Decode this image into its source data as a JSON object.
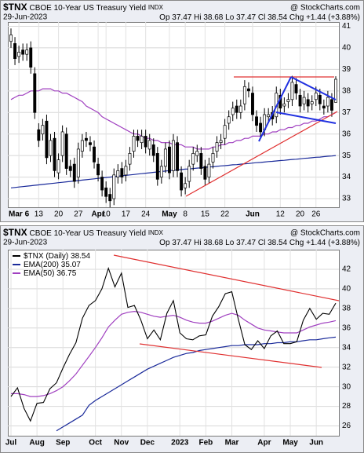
{
  "chart_data": [
    {
      "type": "candlestick",
      "symbol": "$TNX",
      "title": "CBOE 10-Year US Treasury Yield",
      "exchange": "INDX",
      "source": "@ StockCharts.com",
      "date": "29-Jun-2023",
      "quote": [
        {
          "label": "Op",
          "value": 37.47
        },
        {
          "label": "Hi",
          "value": 38.68
        },
        {
          "label": "Lo",
          "value": 37.47
        },
        {
          "label": "Cl",
          "value": 38.54
        },
        {
          "label": "Chg",
          "value": "+1.44 (+3.88%)"
        }
      ],
      "categories": [
        null,
        null,
        "Mar 6",
        null,
        null,
        null,
        null,
        "13",
        null,
        null,
        null,
        null,
        "20",
        null,
        null,
        null,
        null,
        "27",
        null,
        null,
        null,
        null,
        "Apr",
        null,
        "10",
        null,
        null,
        null,
        null,
        "17",
        null,
        null,
        null,
        null,
        "24",
        null,
        null,
        null,
        null,
        null,
        "May",
        null,
        null,
        null,
        "8",
        null,
        null,
        null,
        null,
        "15",
        null,
        null,
        null,
        null,
        "22",
        null,
        null,
        null,
        null,
        null,
        null,
        "Jun",
        null,
        null,
        null,
        null,
        null,
        null,
        "12",
        null,
        null,
        null,
        null,
        "20",
        null,
        null,
        null,
        "26",
        null,
        null,
        null,
        null,
        null
      ],
      "open": [
        40.3,
        40.2,
        39.6,
        39.9,
        39.7,
        40.0,
        38.8,
        36.2,
        36.0,
        36.6,
        35.0,
        35.8,
        34.2,
        35.0,
        36.0,
        34.5,
        34.6,
        34.0,
        35.2,
        35.8,
        35.6,
        35.4,
        34.6,
        34.0,
        33.5,
        33.2,
        33.0,
        34.0,
        34.4,
        34.1,
        34.6,
        35.2,
        35.9,
        35.6,
        35.9,
        35.3,
        35.5,
        35.1,
        34.0,
        34.5,
        35.4,
        34.3,
        35.6,
        34.2,
        33.5,
        33.8,
        34.6,
        35.0,
        35.1,
        34.5,
        34.0,
        34.7,
        35.2,
        35.6,
        35.8,
        36.5,
        36.9,
        37.3,
        37.0,
        37.4,
        38.1,
        37.9,
        36.8,
        36.5,
        36.2,
        36.8,
        37.0,
        36.8,
        37.8,
        37.3,
        37.5,
        37.6,
        38.3,
        37.8,
        37.4,
        37.6,
        37.4,
        37.6,
        37.8,
        37.3,
        37.3,
        37.6,
        37.47
      ],
      "high": [
        40.9,
        40.5,
        40.1,
        40.2,
        40.2,
        40.3,
        39.1,
        36.5,
        36.7,
        36.9,
        36.0,
        36.1,
        35.1,
        36.4,
        36.3,
        34.8,
        34.9,
        35.6,
        36.0,
        36.1,
        35.9,
        35.7,
        34.9,
        34.3,
        33.8,
        33.5,
        34.4,
        34.6,
        34.7,
        34.8,
        35.4,
        36.2,
        36.2,
        36.2,
        36.2,
        36.0,
        35.8,
        35.4,
        34.8,
        35.6,
        35.7,
        36.0,
        35.9,
        34.5,
        34.0,
        34.8,
        35.4,
        35.5,
        35.4,
        34.8,
        34.9,
        35.4,
        35.9,
        36.0,
        36.7,
        37.1,
        37.5,
        37.6,
        37.6,
        38.5,
        38.4,
        38.2,
        37.1,
        36.8,
        37.2,
        37.2,
        37.3,
        38.2,
        38.1,
        37.7,
        37.9,
        38.7,
        38.6,
        38.1,
        38.0,
        37.9,
        37.8,
        38.2,
        38.1,
        37.6,
        38.0,
        37.9,
        38.68
      ],
      "low": [
        40.0,
        39.2,
        39.3,
        39.4,
        39.4,
        38.8,
        36.7,
        35.4,
        35.7,
        34.6,
        34.7,
        34.0,
        33.9,
        34.7,
        34.1,
        34.0,
        33.5,
        33.7,
        34.9,
        35.4,
        35.2,
        34.4,
        33.8,
        33.1,
        32.8,
        32.6,
        32.7,
        33.7,
        33.7,
        33.8,
        34.3,
        34.9,
        35.4,
        35.3,
        35.1,
        35.0,
        34.7,
        33.6,
        33.7,
        34.2,
        33.9,
        34.0,
        34.0,
        33.1,
        33.2,
        33.5,
        34.3,
        34.7,
        34.1,
        33.6,
        33.7,
        34.4,
        34.9,
        35.3,
        35.5,
        36.2,
        36.6,
        36.7,
        36.7,
        37.1,
        37.7,
        36.6,
        36.1,
        35.8,
        35.9,
        36.5,
        36.4,
        36.5,
        36.9,
        37.0,
        37.2,
        37.3,
        37.6,
        37.0,
        37.1,
        37.0,
        37.1,
        37.3,
        37.1,
        36.9,
        37.0,
        36.8,
        37.47
      ],
      "close": [
        40.6,
        39.5,
        39.8,
        39.7,
        39.9,
        39.1,
        37.0,
        35.7,
        36.4,
        34.9,
        35.7,
        34.3,
        34.8,
        36.1,
        34.4,
        34.3,
        33.8,
        35.3,
        35.7,
        35.7,
        35.5,
        34.7,
        34.1,
        33.4,
        33.1,
        32.9,
        34.1,
        34.3,
        34.0,
        34.5,
        35.1,
        35.9,
        35.7,
        35.9,
        35.4,
        35.7,
        35.0,
        33.9,
        34.5,
        35.3,
        34.2,
        35.7,
        34.3,
        33.4,
        33.7,
        34.5,
        35.1,
        35.2,
        34.4,
        33.9,
        34.6,
        35.1,
        35.6,
        35.7,
        36.4,
        36.8,
        37.2,
        37.0,
        37.3,
        38.2,
        38.0,
        36.9,
        36.4,
        36.1,
        36.9,
        36.9,
        36.7,
        37.9,
        37.2,
        37.4,
        37.6,
        38.4,
        37.9,
        37.3,
        37.7,
        37.3,
        37.5,
        37.9,
        37.4,
        37.2,
        37.7,
        37.1,
        38.54
      ],
      "overlays": [
        {
          "color": "#a040c0",
          "values": [
            37.6,
            37.7,
            37.8,
            37.8,
            37.9,
            38.0,
            38.0,
            38.0,
            38.1,
            38.1,
            38.1,
            38.0,
            38.0,
            37.9,
            37.9,
            37.8,
            37.7,
            37.6,
            37.5,
            37.3,
            37.2,
            37.1,
            37.0,
            36.8,
            36.7,
            36.6,
            36.5,
            36.4,
            36.3,
            36.2,
            36.1,
            36.0,
            36.0,
            35.9,
            35.8,
            35.8,
            35.7,
            35.7,
            35.6,
            35.6,
            35.6,
            35.5,
            35.5,
            35.5,
            35.4,
            35.4,
            35.4,
            35.3,
            35.3,
            35.3,
            35.3,
            35.4,
            35.4,
            35.5,
            35.5,
            35.6,
            35.6,
            35.7,
            35.7,
            35.8,
            35.8,
            35.9,
            35.9,
            35.9,
            36.0,
            36.0,
            36.1,
            36.1,
            36.2,
            36.2,
            36.3,
            36.3,
            36.4,
            36.4,
            36.5,
            36.5,
            36.6,
            36.6,
            36.7,
            36.8,
            36.8,
            36.9,
            37.0
          ]
        },
        {
          "color": "#1a2a9a",
          "values": [
            33.5,
            33.52,
            33.54,
            33.56,
            33.58,
            33.6,
            33.62,
            33.64,
            33.66,
            33.68,
            33.7,
            33.72,
            33.74,
            33.76,
            33.78,
            33.8,
            33.82,
            33.84,
            33.86,
            33.88,
            33.9,
            33.92,
            33.94,
            33.96,
            33.98,
            34.0,
            34.02,
            34.04,
            34.06,
            34.08,
            34.1,
            34.12,
            34.14,
            34.16,
            34.18,
            34.2,
            34.22,
            34.24,
            34.26,
            34.28,
            34.3,
            34.32,
            34.33,
            34.35,
            34.37,
            34.38,
            34.4,
            34.42,
            34.43,
            34.45,
            34.47,
            34.48,
            34.5,
            34.52,
            34.53,
            34.55,
            34.57,
            34.58,
            34.6,
            34.62,
            34.63,
            34.65,
            34.67,
            34.68,
            34.7,
            34.72,
            34.73,
            34.75,
            34.77,
            34.78,
            34.8,
            34.82,
            34.83,
            34.85,
            34.87,
            34.88,
            34.9,
            34.92,
            34.93,
            34.95,
            34.97,
            34.98,
            35.0
          ]
        }
      ],
      "ylim": [
        32.6,
        41.2
      ],
      "yticks": [
        33,
        34,
        35,
        36,
        37,
        38,
        39,
        40,
        41
      ],
      "grid": true
    },
    {
      "type": "line",
      "symbol": "$TNX",
      "title": "CBOE 10-Year US Treasury Yield",
      "exchange": "INDX",
      "source": "@ StockCharts.com",
      "date": "29-Jun-2023",
      "quote": [
        {
          "label": "Op",
          "value": 37.47
        },
        {
          "label": "Hi",
          "value": 38.68
        },
        {
          "label": "Lo",
          "value": 37.47
        },
        {
          "label": "Cl",
          "value": 38.54
        },
        {
          "label": "Chg",
          "value": "+1.44 (+3.88%)"
        }
      ],
      "categories": [
        "Jul",
        null,
        null,
        null,
        "Aug",
        null,
        null,
        null,
        "Sep",
        null,
        null,
        null,
        null,
        "Oct",
        null,
        null,
        null,
        "Nov",
        null,
        null,
        null,
        "Dec",
        null,
        null,
        null,
        null,
        "2023",
        null,
        null,
        null,
        "Feb",
        null,
        null,
        null,
        "Mar",
        null,
        null,
        null,
        null,
        "Apr",
        null,
        null,
        null,
        "May",
        null,
        null,
        null,
        "Jun",
        null,
        null,
        null
      ],
      "series": [
        {
          "name": "$TNX (Daily)",
          "color": "#000000",
          "values": [
            29.0,
            29.9,
            27.8,
            26.5,
            28.3,
            28.4,
            29.8,
            30.4,
            31.9,
            33.3,
            34.5,
            37.0,
            38.3,
            38.8,
            40.0,
            42.1,
            40.2,
            41.6,
            38.1,
            38.3,
            36.8,
            34.9,
            35.8,
            34.8,
            37.5,
            38.8,
            35.5,
            34.9,
            34.8,
            35.2,
            35.3,
            37.2,
            38.2,
            39.5,
            39.7,
            36.9,
            34.3,
            33.8,
            34.7,
            33.9,
            35.2,
            35.7,
            34.4,
            34.4,
            34.6,
            36.8,
            38.0,
            36.9,
            37.5,
            37.4,
            38.54
          ]
        },
        {
          "name": "EMA(200)",
          "color": "#1a2a9a",
          "values": [
            null,
            null,
            null,
            null,
            null,
            null,
            null,
            25.5,
            25.9,
            26.3,
            26.7,
            27.1,
            28.1,
            28.6,
            29.0,
            29.4,
            29.8,
            30.2,
            30.6,
            31.0,
            31.4,
            31.8,
            32.1,
            32.4,
            32.7,
            33.0,
            33.2,
            33.4,
            33.5,
            33.7,
            33.8,
            33.9,
            34.0,
            34.1,
            34.2,
            34.2,
            34.3,
            34.3,
            34.3,
            34.4,
            34.4,
            34.5,
            34.5,
            34.6,
            34.6,
            34.7,
            34.8,
            34.8,
            34.9,
            35.0,
            35.07
          ]
        },
        {
          "name": "EMA(50)",
          "color": "#a040c0",
          "values": [
            29.3,
            29.3,
            29.2,
            29.0,
            29.0,
            29.1,
            29.3,
            29.6,
            30.0,
            30.6,
            31.3,
            32.2,
            33.1,
            34.0,
            35.0,
            36.1,
            36.8,
            37.4,
            37.6,
            37.7,
            37.6,
            37.4,
            37.2,
            37.1,
            37.2,
            37.3,
            37.1,
            36.8,
            36.6,
            36.5,
            36.5,
            36.7,
            37.0,
            37.3,
            37.5,
            37.3,
            36.8,
            36.4,
            36.0,
            35.8,
            35.7,
            35.6,
            35.5,
            35.5,
            35.5,
            35.8,
            36.1,
            36.3,
            36.5,
            36.6,
            36.75
          ]
        }
      ],
      "ylim": [
        25,
        44
      ],
      "yticks": [
        26,
        28,
        30,
        32,
        34,
        36,
        38,
        40,
        42
      ],
      "grid": true
    }
  ]
}
